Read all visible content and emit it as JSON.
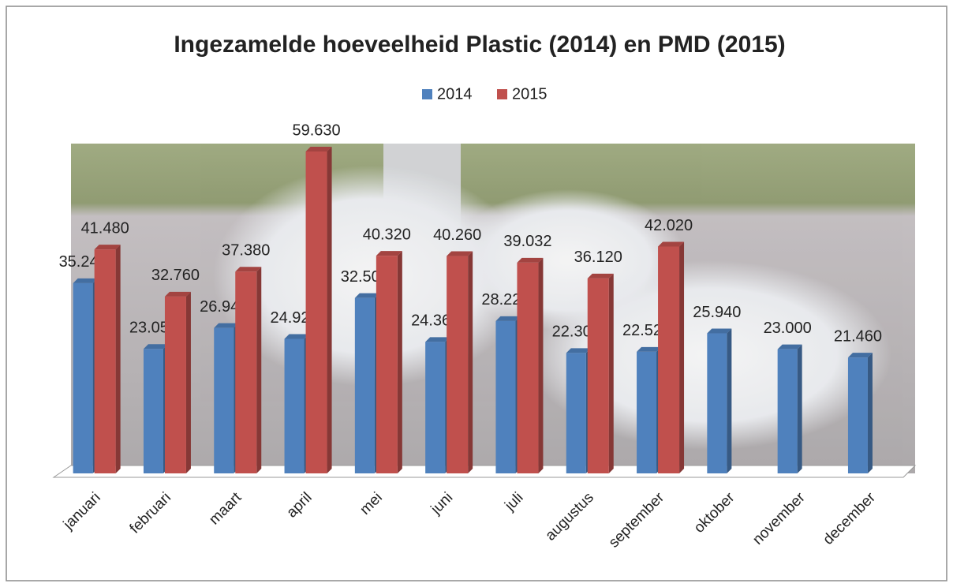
{
  "chart_data": {
    "type": "bar3d",
    "title": "Ingezamelde hoeveelheid Plastic (2014) en PMD (2015)",
    "categories": [
      "januari",
      "februari",
      "maart",
      "april",
      "mei",
      "juni",
      "juli",
      "augustus",
      "september",
      "oktober",
      "november",
      "december"
    ],
    "series": [
      {
        "name": "2014",
        "color": "#4f81bd",
        "values": [
          35240,
          23050,
          26940,
          24920,
          32500,
          24360,
          28220,
          22300,
          22520,
          25940,
          23000,
          21460
        ],
        "value_labels": [
          "35.240",
          "23.050",
          "26.940",
          "24.920",
          "32.500",
          "24.360",
          "28.220",
          "22.300",
          "22.520",
          "25.940",
          "23.000",
          "21.460"
        ]
      },
      {
        "name": "2015",
        "color": "#c0504d",
        "values": [
          41480,
          32760,
          37380,
          59630,
          40320,
          40260,
          39032,
          36120,
          42020,
          null,
          null,
          null
        ],
        "value_labels": [
          "41.480",
          "32.760",
          "37.380",
          "59.630",
          "40.320",
          "40.260",
          "39.032",
          "36.120",
          "42.020",
          null,
          null,
          null
        ]
      }
    ],
    "legend": "top"
  }
}
